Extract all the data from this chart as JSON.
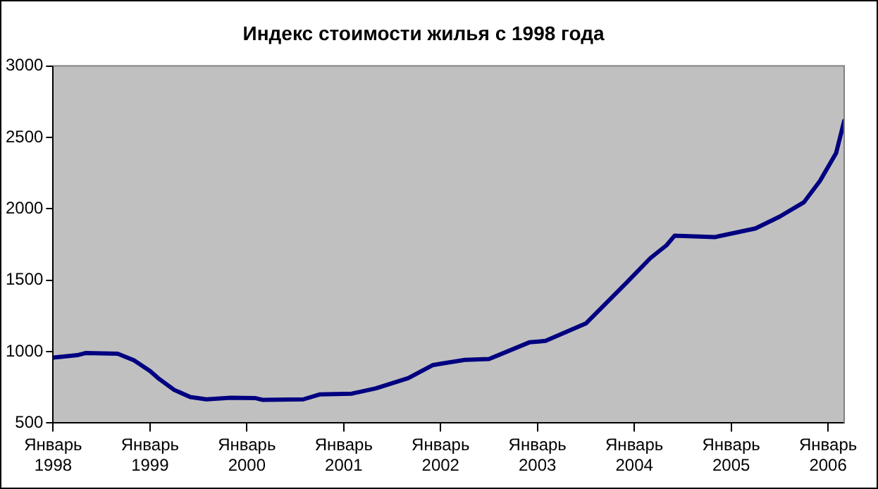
{
  "chart_data": {
    "type": "line",
    "title": "Индекс стоимости жилья с 1998 года",
    "x": [
      "1998-01",
      "1998-04",
      "1998-05",
      "1998-09",
      "1998-11",
      "1999-01",
      "1999-02",
      "1999-04",
      "1999-06",
      "1999-08",
      "1999-11",
      "2000-02",
      "2000-03",
      "2000-08",
      "2000-10",
      "2001-02",
      "2001-05",
      "2001-09",
      "2001-12",
      "2002-01",
      "2002-04",
      "2002-07",
      "2002-12",
      "2003-02",
      "2003-07",
      "2003-12",
      "2004-03",
      "2004-05",
      "2004-06",
      "2004-11",
      "2005-04",
      "2005-07",
      "2005-10",
      "2005-12",
      "2006-02",
      "2006-03"
    ],
    "series": [
      {
        "color": "#000080",
        "values": [
          958,
          975,
          990,
          985,
          940,
          865,
          815,
          732,
          682,
          666,
          677,
          675,
          662,
          666,
          700,
          706,
          743,
          815,
          905,
          915,
          942,
          948,
          1065,
          1075,
          1197,
          1480,
          1655,
          1745,
          1812,
          1802,
          1862,
          1945,
          2045,
          2195,
          2390,
          2615
        ]
      }
    ],
    "xlim": [
      "1998-01",
      "2006-03"
    ],
    "xticks": [
      {
        "value": "1998-01",
        "label": "Январь 1998"
      },
      {
        "value": "1999-01",
        "label": "Январь 1999"
      },
      {
        "value": "2000-01",
        "label": "Январь 2000"
      },
      {
        "value": "2001-01",
        "label": "Январь 2001"
      },
      {
        "value": "2002-01",
        "label": "Январь 2002"
      },
      {
        "value": "2003-01",
        "label": "Январь 2003"
      },
      {
        "value": "2004-01",
        "label": "Январь 2004"
      },
      {
        "value": "2005-01",
        "label": "Январь 2005"
      },
      {
        "value": "2006-01",
        "label": "Январь 2006"
      }
    ],
    "ylim": [
      500,
      3000
    ],
    "yticks": [
      500,
      1000,
      1500,
      2000,
      2500,
      3000
    ],
    "grid": false,
    "legend": false,
    "marker": "none",
    "line_style": "solid"
  }
}
